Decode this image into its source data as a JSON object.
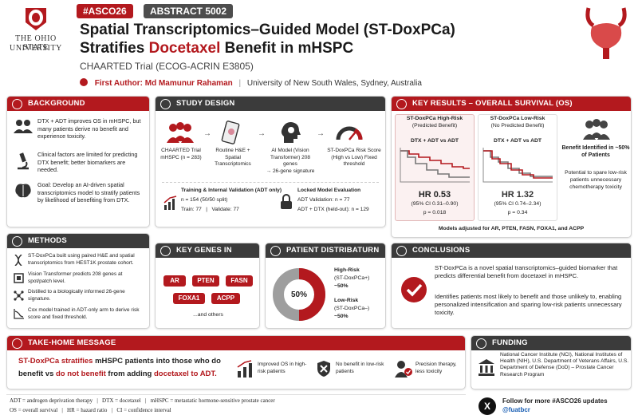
{
  "header": {
    "tag1": "#ASCO26",
    "tag2": "ABSTRACT 5002",
    "title_line1": "Spatial Transcriptomics–Guided Model (ST-DoxPCa)",
    "title_line2_a": "Stratifies ",
    "title_line2_b": "Docetaxel",
    "title_line2_c": " Benefit in mHSPC",
    "subtitle": "CHAARTED Trial (ECOG-ACRIN E3805)",
    "author_label": "First Author: Md Mamunur Rahaman",
    "affiliation": "University of New South Wales, Sydney, Australia",
    "university_line1": "The Ohio State",
    "university_line2": "University",
    "logo_letter": "O"
  },
  "background": {
    "title": "BACKGROUND",
    "item1": "DTX + ADT improves OS in mHSPC, but many patients derive no benefit and experience toxicity.",
    "item2": "Clinical factors are limited for predicting DTX benefit; better biomarkers are needed.",
    "item3": "Goal: Develop an AI-driven spatial transcriptomics model to stratify patients by likelihood of benefiting from DTX."
  },
  "methods": {
    "title": "METHODS",
    "item1": "ST-DoxPCa built using paired H&E and spatial transcriptomics from HEST1K prostate cohort.",
    "item2": "Vision Transformer predicts 208 genes at spot/patch level.",
    "item3": "Distilled to a biologically informed 26-gene signature.",
    "item4": "Cox model trained in ADT-only arm to derive risk score and fixed threshold."
  },
  "design": {
    "title": "STUDY DESIGN",
    "step1": "CHAARTED Trial mHSPC (n = 283)",
    "step2": "Routine H&E + Spatial Transcriptomics",
    "step3_a": "AI Model (Vision Transformer) 208 genes",
    "step3_b": "→ 26-gene signature",
    "step4": "ST-DoxPCa Risk Score (High vs Low) Fixed threshold",
    "train_title": "Training & Internal Validation (ADT only)",
    "train_n": "n = 154 (50/50 split)",
    "train_split": "Train: 77   |   Validate: 77",
    "locked_title": "Locked Model Evaluation",
    "locked_1": "ADT Validation: n = 77",
    "locked_2": "ADT + DTX (held-out): n = 129"
  },
  "results": {
    "title": "KEY RESULTS – OVERALL SURVIVAL (OS)",
    "high_title": "ST-DoxPCa High-Risk",
    "high_sub": "(Predicted Benefit)",
    "low_title": "ST-DoxPCa Low-Risk",
    "low_sub": "(No Predicted Benefit)",
    "compare": "DTX + ADT vs ADT",
    "hr_high": "HR 0.53",
    "ci_high": "(95% CI 0.31–0.90)",
    "p_high": "p = 0.018",
    "hr_low": "HR 1.32",
    "ci_low": "(95% CI 0.74–2.34)",
    "p_low": "p = 0.34",
    "benefit_title": "Benefit Identified in ~50% of Patients",
    "benefit_text": "Potential to spare low-risk patients unnecessary chemotherapy toxicity",
    "footnote": "Models adjusted for AR, PTEN, FASN, FOXA1, and ACPP"
  },
  "genes": {
    "title": "KEY GENES IN SIGNATURE",
    "list": [
      "AR",
      "PTEN",
      "FASN",
      "FOXA1",
      "ACPP"
    ],
    "others": "...and others"
  },
  "distribution": {
    "title": "PATIENT DISTRIBATURN",
    "center": "50%",
    "high_a": "High-Risk",
    "high_b": "(ST-DoxPCa+)",
    "high_c": "~50%",
    "low_a": "Low-Risk",
    "low_b": "(ST-DoxPCa–)",
    "low_c": "~50%"
  },
  "conclusions": {
    "title": "CONCLUSIONS",
    "p1": "ST-DoxPCa is a novel spatial transcriptomics–guided biomarker that predicts differential benefit from docetaxel in mHSPC.",
    "p2": "Identifies patients most likely to benefit and those unlikely to, enabling personalized intensification and sparing low-risk patients unnecessary toxicity."
  },
  "takehome": {
    "title": "TAKE-HOME MESSAGE",
    "l1_a": "ST-DoxPCa stratifies ",
    "l1_b": "mHSPC patients into those who do",
    "l2_a": "benefit",
    "l2_b": " vs ",
    "l2_c": "do not benefit",
    "l2_d": " from adding ",
    "l2_e": "docetaxel to ADT.",
    "i1": "Improved OS in high-risk patients",
    "i2": "No benefit in low-risk patients",
    "i3": "Precision therapy, less toxicity"
  },
  "funding": {
    "title": "FUNDING",
    "text": "National Cancer Institute (NCI), National Institutes of Health (NIH), U.S. Department of Veterans Affairs, U.S. Department of Defense (DoD) – Prostate Cancer Research Program"
  },
  "footer": {
    "abbr1": "ADT = androgen deprivation therapy   |   DTX = docetaxel   |   mHSPC = metastatic hormone-sensitive prostate cancer",
    "abbr2": "OS = overall survival   |   HR = hazard ratio   |   CI = confidence interval",
    "follow": "Follow for more #ASCO26 updates",
    "handle": "@fuatbcr"
  },
  "colors": {
    "accent": "#b3191e",
    "dark": "#3b3b3b"
  },
  "icons": [
    "patients-icon",
    "microscope-icon",
    "brain-icon",
    "dna-icon",
    "gauge-icon",
    "slide-icon",
    "lock-icon",
    "chart-icon",
    "shield-icon",
    "check-icon",
    "building-icon",
    "x-logo-icon",
    "bladder-icon"
  ]
}
